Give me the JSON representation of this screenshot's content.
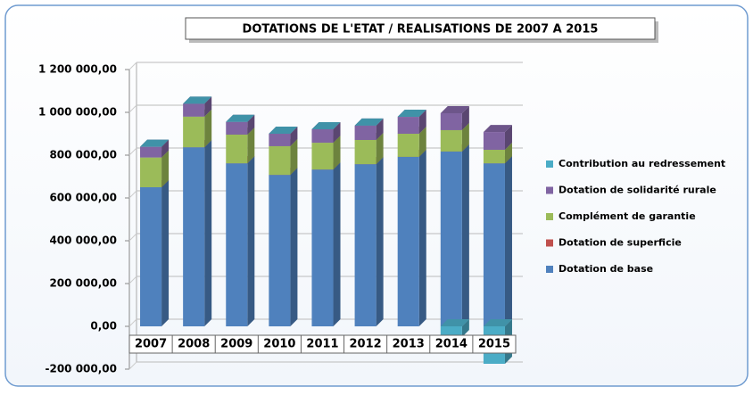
{
  "chart_data": {
    "type": "bar",
    "stacked": true,
    "title": "DOTATIONS DE L'ETAT / REALISATIONS DE 2007 A 2015",
    "categories": [
      "2007",
      "2008",
      "2009",
      "2010",
      "2011",
      "2012",
      "2013",
      "2014",
      "2015"
    ],
    "series": [
      {
        "name": "Dotation de base",
        "color": "#4f81bd",
        "values": [
          650000,
          837000,
          762000,
          708000,
          733000,
          758000,
          792000,
          817000,
          762000
        ]
      },
      {
        "name": "Dotation de superficie",
        "color": "#c0504d",
        "values": [
          0,
          0,
          0,
          0,
          0,
          0,
          0,
          0,
          0
        ]
      },
      {
        "name": "Complément de garantie",
        "color": "#9bbb59",
        "values": [
          139000,
          143000,
          134000,
          134000,
          125000,
          113000,
          108000,
          100000,
          63000
        ]
      },
      {
        "name": "Dotation de solidarité rurale",
        "color": "#8064a2",
        "values": [
          50000,
          60000,
          59000,
          58000,
          63000,
          67000,
          79000,
          79000,
          83000
        ]
      },
      {
        "name": "Contribution au redressement",
        "color": "#4bacc6",
        "values": [
          0,
          0,
          0,
          0,
          0,
          0,
          0,
          -50000,
          -175000
        ]
      }
    ],
    "ylim": [
      -200000,
      1200000
    ],
    "yticks": [
      {
        "value": -200000,
        "label": "-200 000,00"
      },
      {
        "value": 0,
        "label": "0,00"
      },
      {
        "value": 200000,
        "label": "200 000,00"
      },
      {
        "value": 400000,
        "label": "400 000,00"
      },
      {
        "value": 600000,
        "label": "600 000,00"
      },
      {
        "value": 800000,
        "label": "800 000,00"
      },
      {
        "value": 1000000,
        "label": "1 000 000,00"
      },
      {
        "value": 1200000,
        "label": "1 200 000,00"
      }
    ],
    "grid": true
  }
}
